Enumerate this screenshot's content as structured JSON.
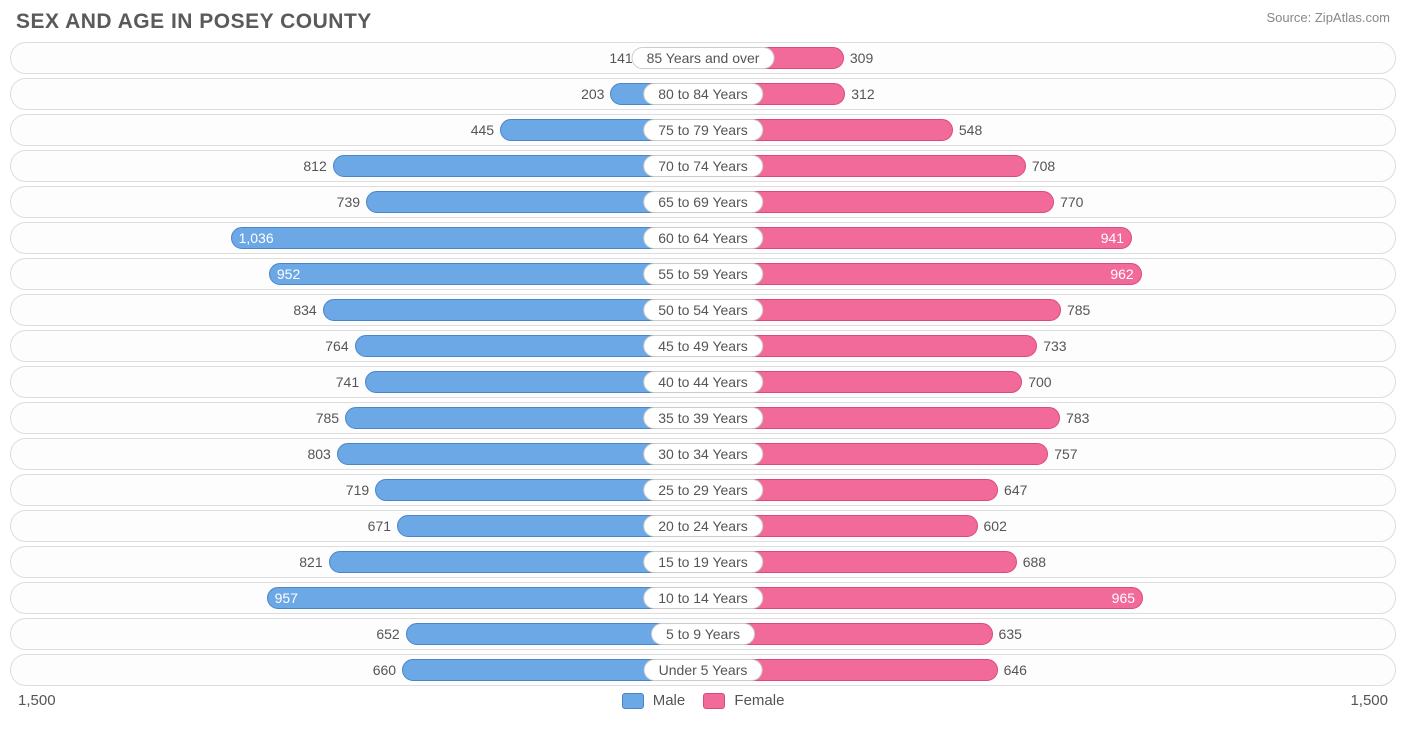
{
  "title": "SEX AND AGE IN POSEY COUNTY",
  "source": "Source: ZipAtlas.com",
  "axis_max": 1500,
  "axis_left_label": "1,500",
  "axis_right_label": "1,500",
  "inside_threshold": 930,
  "colors": {
    "male_fill": "#6ca7e6",
    "male_border": "#4a86c7",
    "female_fill": "#f16a9a",
    "female_border": "#da4a7c",
    "row_border": "#dddddd",
    "text": "#555555",
    "title_text": "#5a5a5a",
    "source_text": "#888888",
    "background": "#ffffff"
  },
  "legend": {
    "male": "Male",
    "female": "Female"
  },
  "rows": [
    {
      "label": "85 Years and over",
      "male": 141,
      "male_fmt": "141",
      "female": 309,
      "female_fmt": "309"
    },
    {
      "label": "80 to 84 Years",
      "male": 203,
      "male_fmt": "203",
      "female": 312,
      "female_fmt": "312"
    },
    {
      "label": "75 to 79 Years",
      "male": 445,
      "male_fmt": "445",
      "female": 548,
      "female_fmt": "548"
    },
    {
      "label": "70 to 74 Years",
      "male": 812,
      "male_fmt": "812",
      "female": 708,
      "female_fmt": "708"
    },
    {
      "label": "65 to 69 Years",
      "male": 739,
      "male_fmt": "739",
      "female": 770,
      "female_fmt": "770"
    },
    {
      "label": "60 to 64 Years",
      "male": 1036,
      "male_fmt": "1,036",
      "female": 941,
      "female_fmt": "941"
    },
    {
      "label": "55 to 59 Years",
      "male": 952,
      "male_fmt": "952",
      "female": 962,
      "female_fmt": "962"
    },
    {
      "label": "50 to 54 Years",
      "male": 834,
      "male_fmt": "834",
      "female": 785,
      "female_fmt": "785"
    },
    {
      "label": "45 to 49 Years",
      "male": 764,
      "male_fmt": "764",
      "female": 733,
      "female_fmt": "733"
    },
    {
      "label": "40 to 44 Years",
      "male": 741,
      "male_fmt": "741",
      "female": 700,
      "female_fmt": "700"
    },
    {
      "label": "35 to 39 Years",
      "male": 785,
      "male_fmt": "785",
      "female": 783,
      "female_fmt": "783"
    },
    {
      "label": "30 to 34 Years",
      "male": 803,
      "male_fmt": "803",
      "female": 757,
      "female_fmt": "757"
    },
    {
      "label": "25 to 29 Years",
      "male": 719,
      "male_fmt": "719",
      "female": 647,
      "female_fmt": "647"
    },
    {
      "label": "20 to 24 Years",
      "male": 671,
      "male_fmt": "671",
      "female": 602,
      "female_fmt": "602"
    },
    {
      "label": "15 to 19 Years",
      "male": 821,
      "male_fmt": "821",
      "female": 688,
      "female_fmt": "688"
    },
    {
      "label": "10 to 14 Years",
      "male": 957,
      "male_fmt": "957",
      "female": 965,
      "female_fmt": "965"
    },
    {
      "label": "5 to 9 Years",
      "male": 652,
      "male_fmt": "652",
      "female": 635,
      "female_fmt": "635"
    },
    {
      "label": "Under 5 Years",
      "male": 660,
      "male_fmt": "660",
      "female": 646,
      "female_fmt": "646"
    }
  ]
}
